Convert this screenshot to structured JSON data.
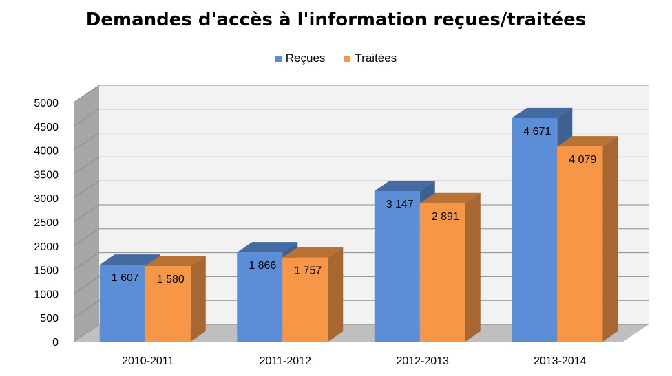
{
  "colors": {
    "recues": "#5B8ED6",
    "traitees": "#F79646"
  },
  "chart_data": {
    "type": "bar",
    "title": "Demandes d'accès à l'information reçues/traitées",
    "categories": [
      "2010-2011",
      "2011-2012",
      "2012-2013",
      "2013-2014"
    ],
    "series": [
      {
        "name": "Reçues",
        "values": [
          1607,
          1866,
          3147,
          4671
        ],
        "labels": [
          "1 607",
          "1 866",
          "3 147",
          "4 671"
        ]
      },
      {
        "name": "Traitées",
        "values": [
          1580,
          1757,
          2891,
          4079
        ],
        "labels": [
          "1 580",
          "1 757",
          "2 891",
          "4 079"
        ]
      }
    ],
    "ylim": [
      0,
      5000
    ],
    "yticks": [
      "0",
      "500",
      "1000",
      "1500",
      "2000",
      "2500",
      "3000",
      "3500",
      "4000",
      "4500",
      "5000"
    ],
    "grid": true,
    "legend": "top",
    "style": "3d-clustered-bar"
  }
}
